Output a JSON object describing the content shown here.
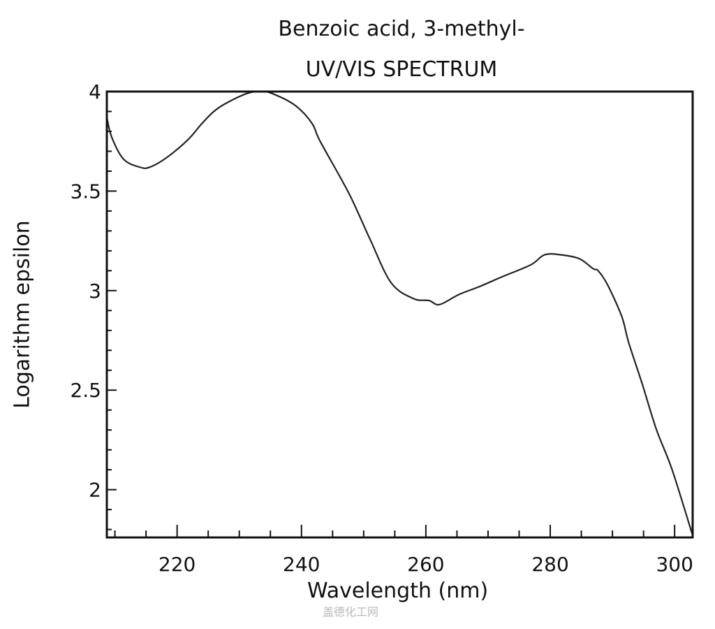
{
  "chart_data": {
    "type": "line",
    "title": "Benzoic acid, 3-methyl-",
    "subtitle": "UV/VIS SPECTRUM",
    "xlabel": "Wavelength (nm)",
    "ylabel": "Logarithm epsilon",
    "xlim": [
      208.7,
      302.9
    ],
    "ylim": [
      1.76,
      4.0
    ],
    "x_ticks": [
      220,
      240,
      260,
      280,
      300
    ],
    "y_ticks": [
      2,
      2.5,
      3,
      3.5,
      4
    ],
    "x_minor_step": 5,
    "y_minor_step": 0.1,
    "grid": false,
    "legend": null,
    "series": [
      {
        "name": "Benzoic acid, 3-methyl-",
        "color": "#222222",
        "x": [
          208.7,
          209.5,
          211.4,
          214.0,
          215.6,
          218.4,
          221.8,
          224.0,
          225.9,
          227.8,
          231.2,
          233.3,
          235.3,
          239.0,
          241.7,
          243.0,
          247.6,
          251.0,
          254.4,
          258.0,
          260.5,
          262.2,
          265.3,
          268.6,
          272.3,
          276.9,
          279.1,
          281.7,
          284.7,
          286.9,
          287.7,
          289.2,
          291.5,
          292.6,
          294.8,
          297.1,
          299.6,
          302.9
        ],
        "y": [
          3.87,
          3.77,
          3.66,
          3.62,
          3.62,
          3.67,
          3.76,
          3.84,
          3.9,
          3.94,
          3.99,
          4.0,
          3.99,
          3.93,
          3.84,
          3.75,
          3.49,
          3.26,
          3.04,
          2.96,
          2.95,
          2.93,
          2.98,
          3.02,
          3.07,
          3.13,
          3.18,
          3.18,
          3.16,
          3.11,
          3.1,
          3.03,
          2.87,
          2.74,
          2.53,
          2.3,
          2.1,
          1.77
        ]
      }
    ]
  },
  "labels": {
    "title": "Benzoic acid, 3-methyl-",
    "subtitle": "UV/VIS SPECTRUM",
    "xlabel": "Wavelength (nm)",
    "ylabel": "Logarithm epsilon",
    "watermark": "盖德化工网"
  }
}
